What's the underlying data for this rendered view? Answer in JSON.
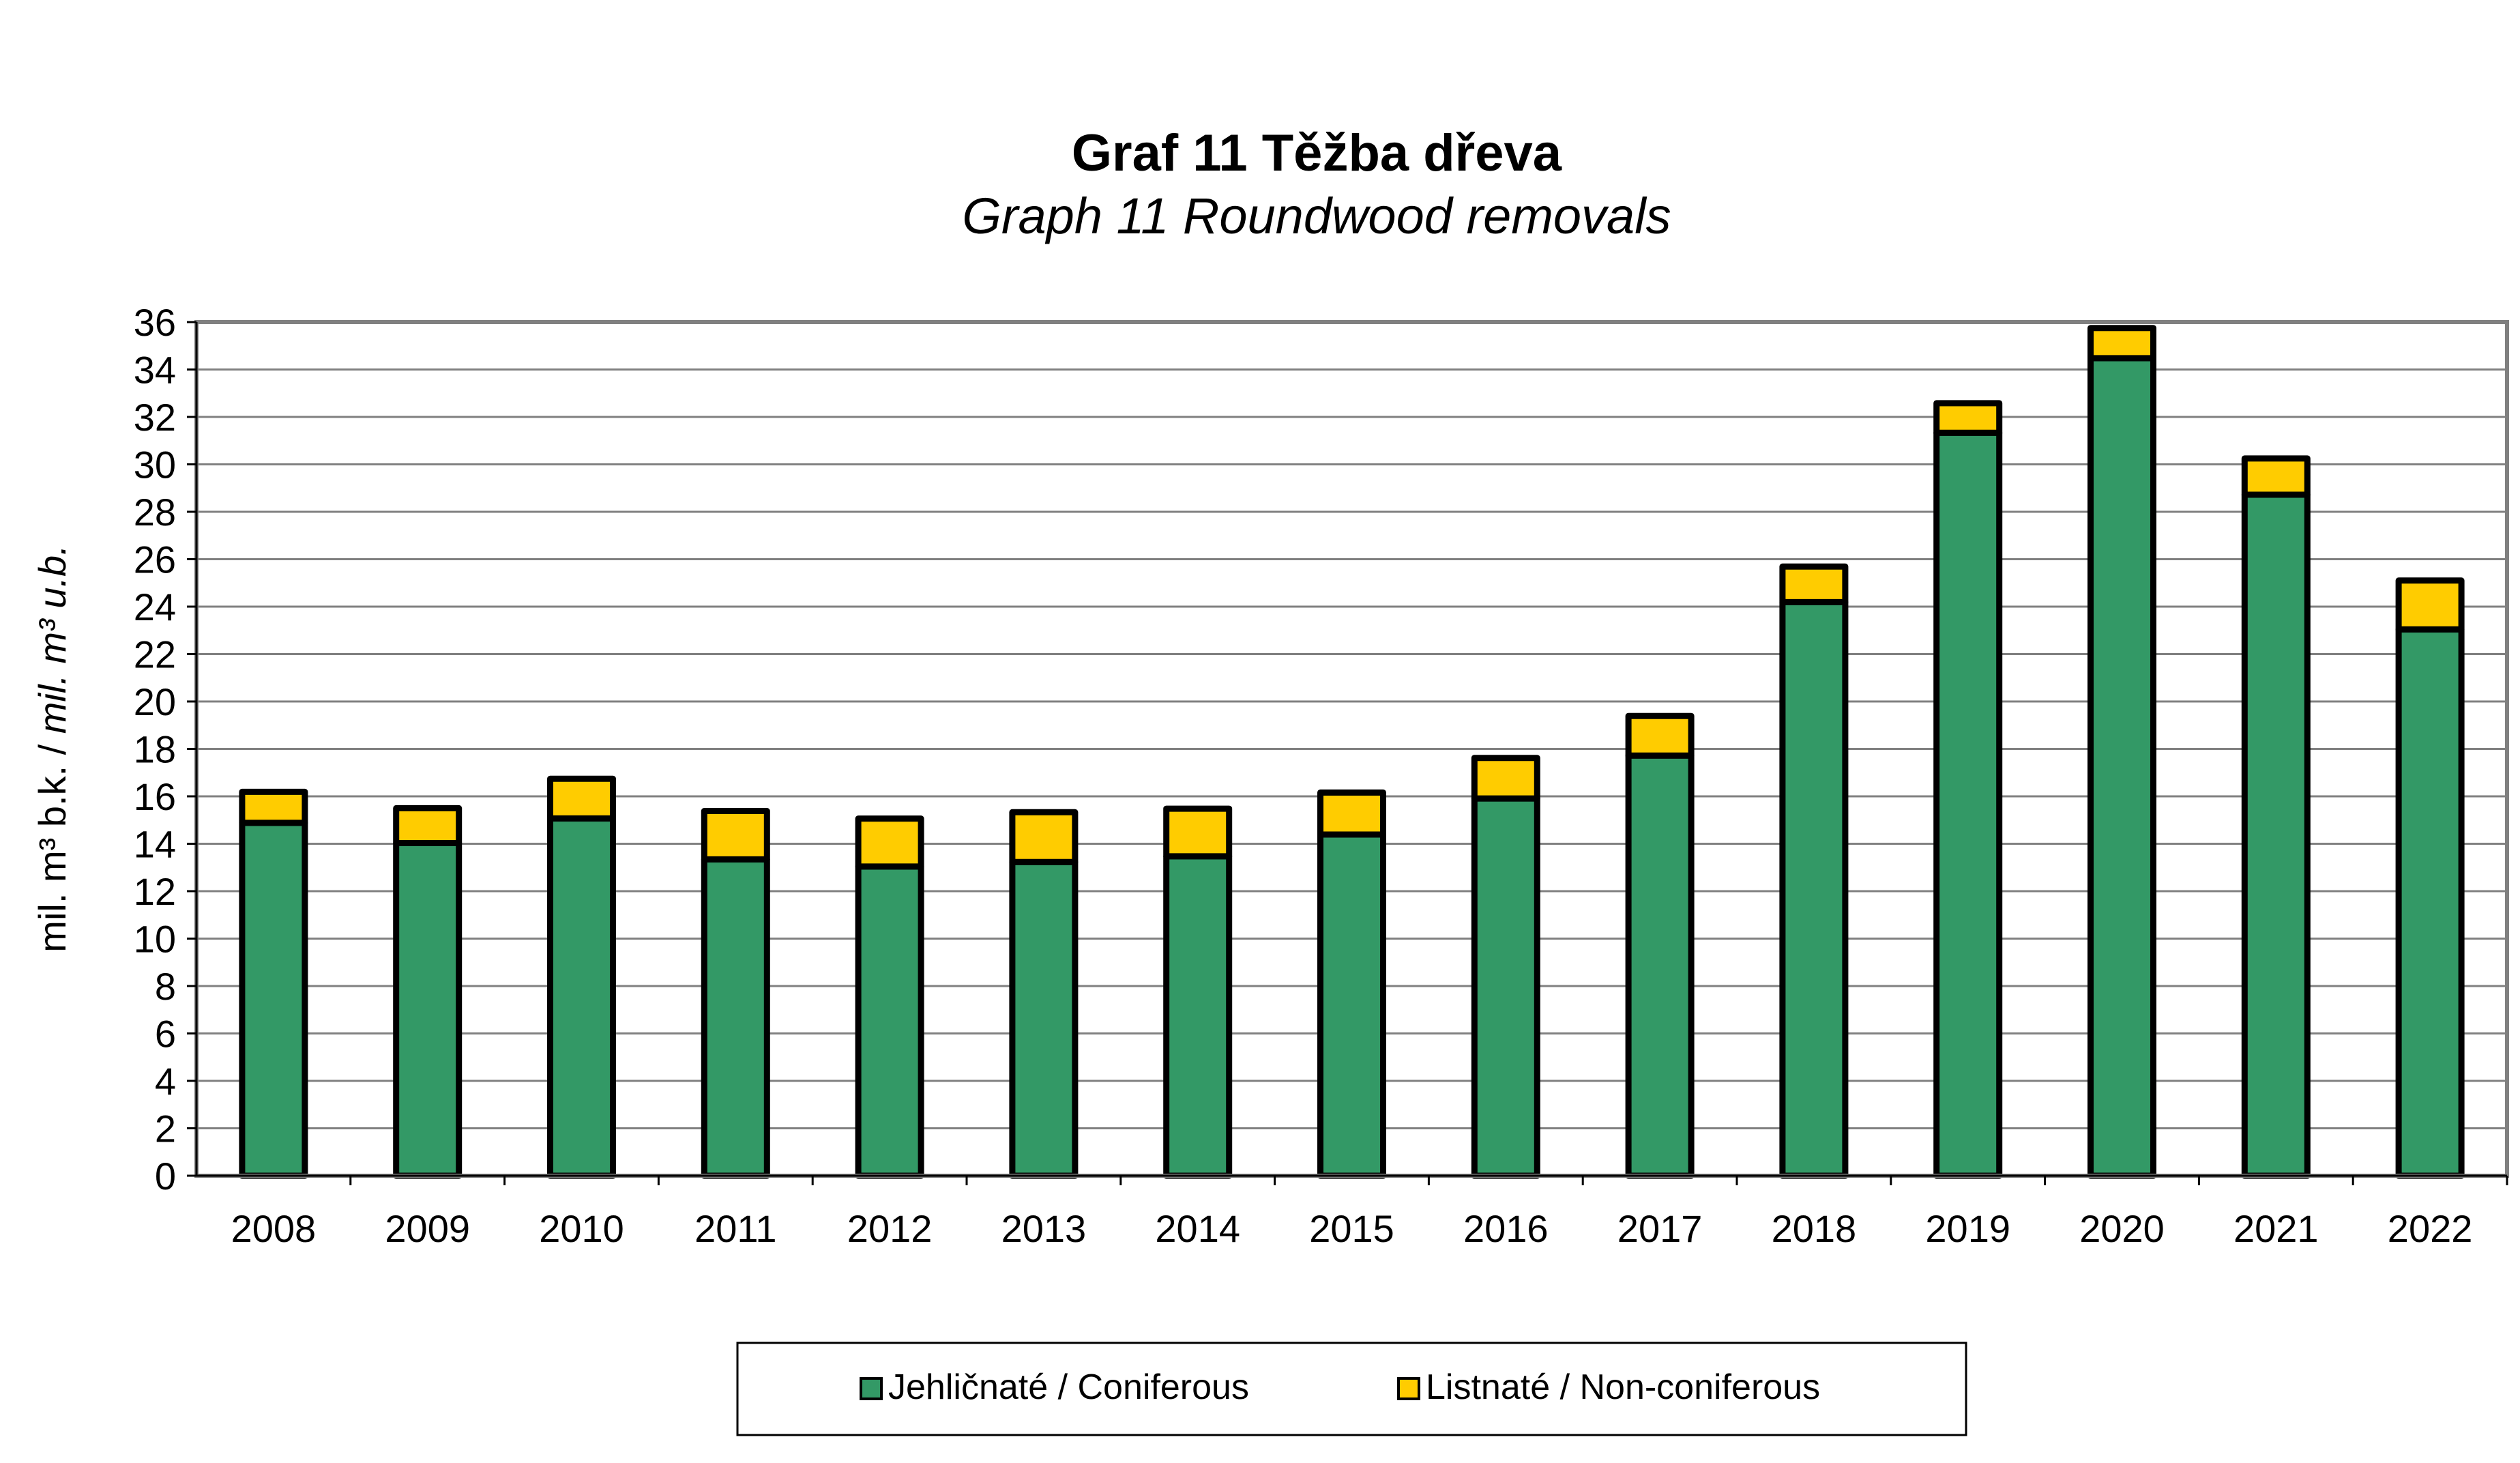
{
  "chart_data": {
    "type": "bar",
    "stacked": true,
    "title": "Graf 11  Těžba dřeva",
    "subtitle": "Graph 11  Roundwood removals",
    "ylabel": "mil. m³ b.k. / mil. m³ u.b.",
    "ylabel_cz": "mil. m³ b.k. / ",
    "ylabel_en": "mil. m³ u.b.",
    "xlabel": "",
    "ylim": [
      0,
      36
    ],
    "yticks": [
      0,
      2,
      4,
      6,
      8,
      10,
      12,
      14,
      16,
      18,
      20,
      22,
      24,
      26,
      28,
      30,
      32,
      34,
      36
    ],
    "grid": true,
    "legend_position": "bottom",
    "categories": [
      "2008",
      "2009",
      "2010",
      "2011",
      "2012",
      "2013",
      "2014",
      "2015",
      "2016",
      "2017",
      "2018",
      "2019",
      "2020",
      "2021",
      "2022"
    ],
    "series": [
      {
        "name": "Jehličnaté / Coniferous",
        "color": "#339966",
        "values": [
          14.88,
          14.03,
          15.07,
          13.34,
          13.04,
          13.23,
          13.47,
          14.39,
          15.91,
          17.72,
          24.19,
          31.33,
          34.48,
          28.72,
          23.04
        ]
      },
      {
        "name": "Listnaté / Non-coniferous",
        "color": "#FFCC00",
        "values": [
          1.31,
          1.47,
          1.67,
          2.04,
          2.02,
          2.1,
          2.01,
          1.77,
          1.71,
          1.67,
          1.5,
          1.25,
          1.27,
          1.53,
          2.06
        ]
      }
    ]
  }
}
